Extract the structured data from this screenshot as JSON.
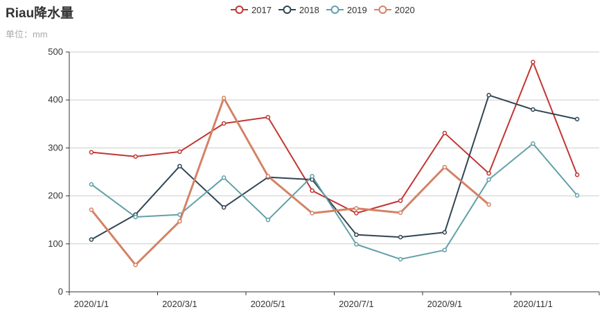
{
  "chart_data": {
    "type": "line",
    "title": "Riau降水量",
    "subtitle": "单位：mm",
    "x": [
      "2020/1/1",
      "2020/2/1",
      "2020/3/1",
      "2020/4/1",
      "2020/5/1",
      "2020/6/1",
      "2020/7/1",
      "2020/8/1",
      "2020/9/1",
      "2020/10/1",
      "2020/11/1",
      "2020/12/1"
    ],
    "x_tick_labels": [
      "2020/1/1",
      "2020/3/1",
      "2020/5/1",
      "2020/7/1",
      "2020/9/1",
      "2020/11/1"
    ],
    "y_ticks": [
      0,
      100,
      200,
      300,
      400,
      500
    ],
    "ylim": [
      0,
      500
    ],
    "grid": true,
    "legend_position": "top-center",
    "series": [
      {
        "name": "2017",
        "color": "#c23531",
        "values": [
          291,
          282,
          292,
          351,
          364,
          211,
          164,
          190,
          331,
          247,
          479,
          244
        ]
      },
      {
        "name": "2018",
        "color": "#2f4554",
        "values": [
          109,
          161,
          262,
          176,
          239,
          234,
          119,
          114,
          124,
          410,
          380,
          360
        ]
      },
      {
        "name": "2019",
        "color": "#61a0a8",
        "values": [
          224,
          156,
          161,
          238,
          150,
          241,
          99,
          68,
          87,
          234,
          309,
          201
        ]
      },
      {
        "name": "2020",
        "color": "#d48265",
        "values": [
          171,
          56,
          147,
          404,
          241,
          164,
          174,
          165,
          260,
          182,
          null,
          null
        ]
      }
    ]
  }
}
